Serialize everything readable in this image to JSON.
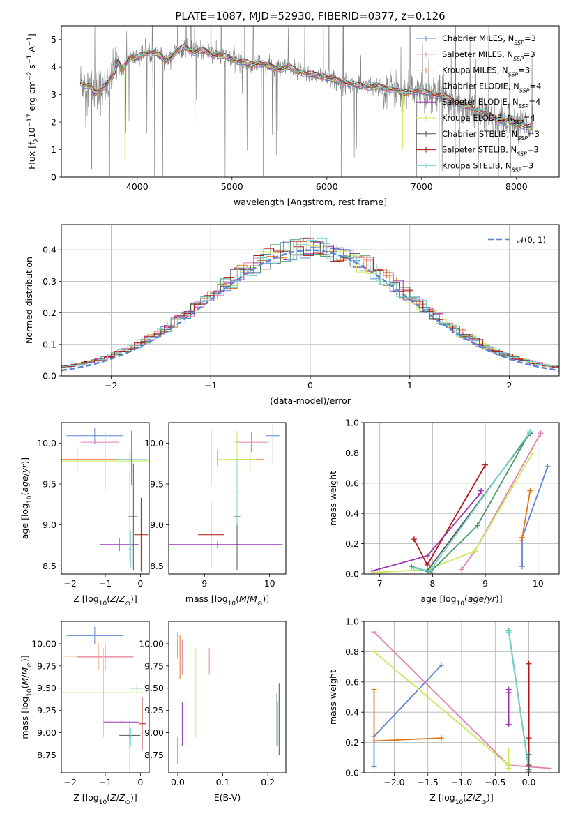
{
  "figure": {
    "title": "PLATE=1087, MJD=52930, FIBERID=0377, z=0.126"
  },
  "colors": {
    "chabrier_miles": "#5b84d4",
    "salpeter_miles": "#e57fb3",
    "kroupa_miles": "#e0771c",
    "chabrier_elodie": "#4b9b6e",
    "salpeter_elodie": "#9b33b0",
    "kroupa_elodie": "#c9ea5a",
    "chabrier_stelib": "#555555",
    "salpeter_stelib": "#b01515",
    "kroupa_stelib": "#76d3d3",
    "data": "#808080",
    "gaussian": "#5b84d4"
  },
  "legend": {
    "spectrum": [
      "Chabrier MILES, N_SSP=3",
      "Salpeter MILES, N_SSP=3",
      "Kroupa MILES, N_SSP=3",
      "Chabrier ELODIE, N_SSP=4",
      "Salpeter ELODIE, N_SSP=4",
      "Kroupa ELODIE, N_SSP=4",
      "Chabrier STELIB, N_SSP=3",
      "Salpeter STELIB, N_SSP=3",
      "Kroupa STELIB, N_SSP=3"
    ],
    "residual": "𝒩(0, 1)"
  },
  "chart_data": [
    {
      "id": "spectrum",
      "type": "line",
      "xlabel": "wavelength [Angstrom, rest frame]",
      "ylabel": "Flux [f_λ 10^-17 erg cm^-2 s^-1 A^-1]",
      "xlim": [
        3200,
        8450
      ],
      "ylim": [
        0,
        5.5
      ],
      "xticks": [
        4000,
        5000,
        6000,
        7000,
        8000
      ],
      "yticks": [
        0,
        1,
        2,
        3,
        4,
        5
      ],
      "continuum": {
        "x": [
          3400,
          3450,
          3500,
          3550,
          3600,
          3650,
          3700,
          3750,
          3800,
          3850,
          3900,
          4000,
          4100,
          4200,
          4300,
          4400,
          4500,
          4600,
          4700,
          4800,
          4900,
          5000,
          5100,
          5200,
          5300,
          5400,
          5500,
          5600,
          5700,
          5800,
          5900,
          6000,
          6100,
          6200,
          6300,
          6400,
          6500,
          6600,
          6700,
          6800,
          6900,
          7000,
          7100,
          7200,
          7300,
          7400,
          7500,
          7600,
          7700,
          7800,
          7900,
          8000,
          8100,
          8170
        ],
        "y": [
          3.45,
          3.35,
          3.3,
          3.05,
          3.15,
          3.3,
          3.5,
          3.7,
          4.2,
          3.9,
          4.3,
          4.35,
          4.55,
          4.5,
          4.25,
          4.5,
          4.75,
          4.55,
          4.6,
          4.45,
          4.4,
          4.3,
          4.2,
          4.1,
          4.15,
          4.0,
          3.95,
          4.0,
          3.85,
          3.75,
          3.7,
          3.65,
          3.5,
          3.45,
          3.35,
          3.3,
          3.3,
          3.25,
          3.2,
          3.05,
          3.15,
          3.1,
          3.05,
          2.95,
          2.85,
          2.7,
          2.55,
          2.4,
          2.25,
          2.1,
          2.05,
          1.95,
          1.85,
          1.8
        ]
      }
    },
    {
      "id": "residuals",
      "type": "line",
      "xlabel": "(data-model)/error",
      "ylabel": "Normed distribution",
      "xlim": [
        -2.5,
        2.5
      ],
      "ylim": [
        0,
        0.48
      ],
      "xticks": [
        -2,
        -1,
        0,
        1,
        2
      ],
      "yticks": [
        0.0,
        0.1,
        0.2,
        0.3,
        0.4
      ],
      "grid": true,
      "legend_position": "top-right",
      "gaussian": {
        "mu": 0,
        "sigma": 1
      }
    },
    {
      "id": "age_vs_Z",
      "type": "scatter",
      "xlabel": "Z [log10(Z/Z⊙)]",
      "ylabel": "age  [log10(age/yr)]",
      "xlim": [
        -2.25,
        0.25
      ],
      "ylim": [
        8.4,
        10.25
      ],
      "xticks": [
        -2,
        -1,
        0
      ],
      "yticks": [
        8.5,
        9.0,
        9.5,
        10.0
      ],
      "points": [
        {
          "s": "chabrier_miles",
          "x": -1.3,
          "y": 10.09,
          "xerr": 0.8,
          "yerr": 0.1
        },
        {
          "s": "salpeter_miles",
          "x": -1.15,
          "y": 10.01,
          "xerr": 0.55,
          "yerr": 0.12
        },
        {
          "s": "kroupa_miles",
          "x": -1.8,
          "y": 9.8,
          "xerr": 1.5,
          "yerr": 0.15
        },
        {
          "s": "kroupa_elodie",
          "x": -1.0,
          "y": 9.78,
          "xerr": 1.3,
          "yerr": 0.35
        },
        {
          "s": "chabrier_elodie",
          "x": -0.3,
          "y": 9.82,
          "xerr": 0.3,
          "yerr": 0.1
        },
        {
          "s": "kroupa_stelib",
          "x": -0.25,
          "y": 9.8,
          "xerr": 0.45,
          "yerr": 0.1
        },
        {
          "s": "salpeter_elodie",
          "x": -0.25,
          "y": 9.82,
          "xerr": 0.2,
          "yerr": 0.33
        },
        {
          "s": "chabrier_stelib",
          "x": -0.2,
          "y": 9.1,
          "xerr": 0.1,
          "yerr": 0.65
        },
        {
          "s": "salpeter_stelib",
          "x": 0.02,
          "y": 8.88,
          "xerr": 0.2,
          "yerr": 0.45
        },
        {
          "s": "salpeter_elodie",
          "x": -0.6,
          "y": 8.76,
          "xerr": 0.55,
          "yerr": 0.08
        },
        {
          "s": "kroupa_stelib",
          "x": -0.28,
          "y": 8.7,
          "xerr": 0.05,
          "yerr": 0.22
        },
        {
          "s": "chabrier_miles",
          "x": -0.3,
          "y": 9.1,
          "xerr": 0.05,
          "yerr": 0.55
        }
      ]
    },
    {
      "id": "age_vs_mass",
      "type": "scatter",
      "xlabel": "mass [log10(M/M⊙)]",
      "ylabel": "",
      "xlim": [
        8.45,
        10.25
      ],
      "ylim": [
        8.4,
        10.25
      ],
      "xticks": [
        9,
        10
      ],
      "yticks": [
        8.5,
        9.0,
        9.5,
        10.0
      ],
      "points": [
        {
          "s": "chabrier_miles",
          "x": 10.05,
          "y": 10.09,
          "xerr": 0.1,
          "yerr": 0.35
        },
        {
          "s": "salpeter_miles",
          "x": 9.72,
          "y": 10.01,
          "xerr": 0.25,
          "yerr": 0.12
        },
        {
          "s": "kroupa_miles",
          "x": 9.7,
          "y": 9.8,
          "xerr": 0.22,
          "yerr": 0.15
        },
        {
          "s": "salpeter_elodie",
          "x": 9.1,
          "y": 9.82,
          "xerr": 0.05,
          "yerr": 0.35
        },
        {
          "s": "chabrier_elodie",
          "x": 9.2,
          "y": 9.82,
          "xerr": 0.3,
          "yerr": 0.1
        },
        {
          "s": "kroupa_elodie",
          "x": 9.5,
          "y": 9.8,
          "xerr": 0.3,
          "yerr": 0.35
        },
        {
          "s": "salpeter_stelib",
          "x": 9.1,
          "y": 8.88,
          "xerr": 0.2,
          "yerr": 0.4
        },
        {
          "s": "salpeter_elodie",
          "x": 9.2,
          "y": 8.76,
          "xerr": 1.0,
          "yerr": 0.05
        },
        {
          "s": "chabrier_stelib",
          "x": 9.5,
          "y": 9.1,
          "xerr": 0.05,
          "yerr": 0.65
        },
        {
          "s": "kroupa_stelib",
          "x": 9.5,
          "y": 9.4,
          "xerr": 0.05,
          "yerr": 0.4
        }
      ]
    },
    {
      "id": "mass_weight_vs_age",
      "type": "line",
      "xlabel": "age  [log10(age/yr)]",
      "ylabel": "mass weight",
      "xlim": [
        6.7,
        10.4
      ],
      "ylim": [
        0.0,
        1.0
      ],
      "xticks": [
        7,
        8,
        9,
        10
      ],
      "yticks": [
        0.0,
        0.2,
        0.4,
        0.6,
        0.8,
        1.0
      ],
      "grid": true,
      "series": [
        {
          "s": "chabrier_miles",
          "x": [
            9.7,
            9.7,
            10.18
          ],
          "y": [
            0.05,
            0.24,
            0.71
          ]
        },
        {
          "s": "kroupa_miles",
          "x": [
            9.68,
            9.7,
            9.85
          ],
          "y": [
            0.22,
            0.24,
            0.55
          ]
        },
        {
          "s": "salpeter_miles",
          "x": [
            8.55,
            8.8,
            10.05
          ],
          "y": [
            0.03,
            0.15,
            0.93
          ]
        },
        {
          "s": "kroupa_elodie",
          "x": [
            6.9,
            7.9,
            8.8,
            9.9
          ],
          "y": [
            0.01,
            0.03,
            0.15,
            0.8
          ]
        },
        {
          "s": "salpeter_stelib",
          "x": [
            7.65,
            7.9,
            9.0
          ],
          "y": [
            0.23,
            0.06,
            0.72
          ]
        },
        {
          "s": "salpeter_elodie",
          "x": [
            6.85,
            7.9,
            8.9,
            8.92
          ],
          "y": [
            0.02,
            0.12,
            0.53,
            0.55
          ]
        },
        {
          "s": "chabrier_stelib",
          "x": [
            7.6,
            7.9,
            9.85
          ],
          "y": [
            0.05,
            0.02,
            0.93
          ]
        },
        {
          "s": "chabrier_elodie",
          "x": [
            7.6,
            7.95,
            8.85,
            9.85
          ],
          "y": [
            0.05,
            0.01,
            0.32,
            0.94
          ]
        },
        {
          "s": "kroupa_stelib",
          "x": [
            7.65,
            7.95,
            9.85
          ],
          "y": [
            0.04,
            0.02,
            0.94
          ]
        }
      ]
    },
    {
      "id": "mass_vs_Z",
      "type": "scatter",
      "xlabel": "Z [log10(Z/Z⊙)]",
      "ylabel": "mass [log10(M/M⊙)]",
      "xlim": [
        -2.25,
        0.25
      ],
      "ylim": [
        8.55,
        10.25
      ],
      "xticks": [
        -2,
        -1,
        0
      ],
      "yticks": [
        8.75,
        9.0,
        9.25,
        9.5,
        9.75,
        10.0
      ],
      "points": [
        {
          "s": "chabrier_miles",
          "x": -1.3,
          "y": 10.09,
          "xerr": 0.8,
          "yerr": 0.1
        },
        {
          "s": "kroupa_miles",
          "x": -1.2,
          "y": 9.86,
          "xerr": 1.0,
          "yerr": 0.15
        },
        {
          "s": "salpeter_miles",
          "x": -1.0,
          "y": 9.85,
          "xerr": 0.8,
          "yerr": 0.15
        },
        {
          "s": "kroupa_elodie",
          "x": -1.05,
          "y": 9.45,
          "xerr": 1.25,
          "yerr": 0.5
        },
        {
          "s": "chabrier_elodie",
          "x": -0.1,
          "y": 9.5,
          "xerr": 0.2,
          "yerr": 0.05
        },
        {
          "s": "salpeter_elodie",
          "x": -0.55,
          "y": 9.12,
          "xerr": 0.5,
          "yerr": 0.03
        },
        {
          "s": "salpeter_stelib",
          "x": 0.05,
          "y": 9.1,
          "xerr": 0.1,
          "yerr": 0.3
        },
        {
          "s": "chabrier_stelib",
          "x": -0.3,
          "y": 8.97,
          "xerr": 0.3,
          "yerr": 0.1
        },
        {
          "s": "chabrier_elodie",
          "x": -0.3,
          "y": 8.85,
          "xerr": 0.05,
          "yerr": 0.3
        },
        {
          "s": "kroupa_stelib",
          "x": -0.28,
          "y": 8.95,
          "xerr": 0.05,
          "yerr": 0.1
        }
      ]
    },
    {
      "id": "mass_vs_ebv",
      "type": "scatter",
      "xlabel": "E(B-V)",
      "ylabel": "",
      "xlim": [
        -0.02,
        0.24
      ],
      "ylim": [
        8.55,
        10.25
      ],
      "xticks": [
        0.0,
        0.1,
        0.2
      ],
      "yticks": [
        8.75,
        9.0,
        9.25,
        9.5,
        9.75,
        10.0
      ],
      "points": [
        {
          "s": "chabrier_miles",
          "x": 0.0,
          "y": 9.98,
          "xerr": 0,
          "yerr": 0.15
        },
        {
          "s": "kroupa_miles",
          "x": 0.005,
          "y": 9.85,
          "xerr": 0,
          "yerr": 0.25
        },
        {
          "s": "salpeter_miles",
          "x": 0.01,
          "y": 9.85,
          "xerr": 0,
          "yerr": 0.2
        },
        {
          "s": "salpeter_elodie",
          "x": 0.01,
          "y": 9.1,
          "xerr": 0,
          "yerr": 0.25
        },
        {
          "s": "chabrier_elodie",
          "x": 0.0,
          "y": 8.8,
          "xerr": 0,
          "yerr": 0.15
        },
        {
          "s": "kroupa_elodie",
          "x": 0.04,
          "y": 9.45,
          "xerr": 0,
          "yerr": 0.5
        },
        {
          "s": "salpeter_miles",
          "x": 0.07,
          "y": 9.8,
          "xerr": 0,
          "yerr": 0.15
        },
        {
          "s": "chabrier_stelib",
          "x": 0.225,
          "y": 9.15,
          "xerr": 0,
          "yerr": 0.4
        },
        {
          "s": "chabrier_elodie",
          "x": 0.22,
          "y": 9.15,
          "xerr": 0,
          "yerr": 0.3
        },
        {
          "s": "kroupa_stelib",
          "x": 0.222,
          "y": 9.1,
          "xerr": 0,
          "yerr": 0.25
        }
      ]
    },
    {
      "id": "mass_weight_vs_Z",
      "type": "line",
      "xlabel": "Z [log10(Z/Z⊙)]",
      "ylabel": "mass weight",
      "xlim": [
        -2.45,
        0.45
      ],
      "ylim": [
        0.0,
        1.0
      ],
      "xticks": [
        -2.0,
        -1.5,
        -1.0,
        -0.5,
        0.0
      ],
      "yticks": [
        0.0,
        0.2,
        0.4,
        0.6,
        0.8,
        1.0
      ],
      "grid": true,
      "series": [
        {
          "s": "chabrier_miles",
          "x": [
            -2.3,
            -2.3,
            -1.3
          ],
          "y": [
            0.04,
            0.24,
            0.71
          ]
        },
        {
          "s": "kroupa_miles",
          "x": [
            -2.3,
            -2.3,
            -1.3
          ],
          "y": [
            0.55,
            0.21,
            0.23
          ]
        },
        {
          "s": "salpeter_miles",
          "x": [
            -2.3,
            -0.3,
            0.3
          ],
          "y": [
            0.93,
            0.05,
            0.03
          ]
        },
        {
          "s": "kroupa_elodie",
          "x": [
            -2.3,
            -0.3,
            -0.3,
            -0.3
          ],
          "y": [
            0.8,
            0.05,
            0.15,
            0.03
          ]
        },
        {
          "s": "chabrier_elodie",
          "x": [
            -0.3,
            0.0
          ],
          "y": [
            0.94,
            0.02
          ]
        },
        {
          "s": "kroupa_stelib",
          "x": [
            -0.3,
            0.0
          ],
          "y": [
            0.93,
            0.01
          ]
        },
        {
          "s": "salpeter_elodie",
          "x": [
            -0.3,
            -0.3,
            -0.3
          ],
          "y": [
            0.32,
            0.55,
            0.53
          ]
        },
        {
          "s": "salpeter_stelib",
          "x": [
            0.0,
            0.0,
            0.0
          ],
          "y": [
            0.72,
            0.23,
            0.05
          ]
        },
        {
          "s": "chabrier_stelib",
          "x": [
            0.0,
            0.0
          ],
          "y": [
            0.12,
            0.01
          ]
        }
      ]
    }
  ]
}
